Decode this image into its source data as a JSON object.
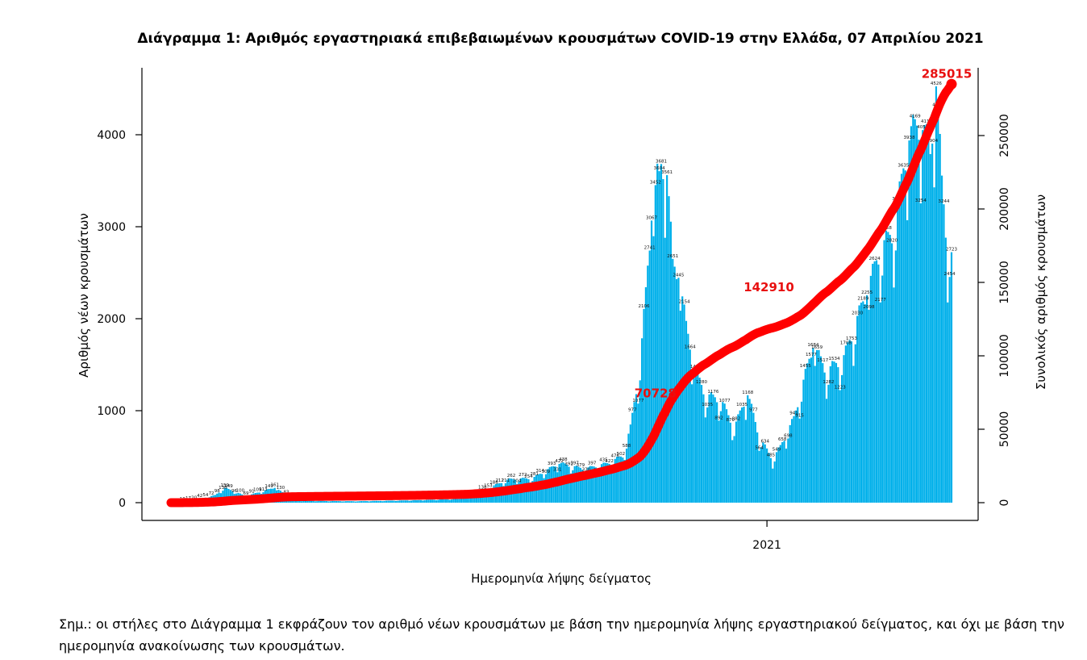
{
  "chart_data": {
    "type": "bar",
    "title": "Διάγραμμα 1: Αριθμός εργαστηριακά επιβεβαιωμένων κρουσμάτων COVID-19 στην Ελλάδα, 07 Απριλίου 2021",
    "xlabel": "Ημερομηνία λήψης δείγματος",
    "ylabel": "Αριθμός νέων κρουσμάτων",
    "y2label": "Συνολικός αριθμός κρουσμάτων",
    "ylim": [
      0,
      4700
    ],
    "y2lim": [
      0,
      285015
    ],
    "yticks": [
      0,
      1000,
      2000,
      3000,
      4000
    ],
    "y2ticks": [
      0,
      50000,
      100000,
      150000,
      200000,
      250000
    ],
    "x_tick_label": "2021",
    "bar_color": "#00b0ea",
    "line_color": "#ff0000",
    "series": [
      {
        "kind": "bar",
        "period": "daily, 2020-02-26 to 2021-04-07",
        "anchor_values": [
          {
            "date": "2020-03-25",
            "value": 159
          },
          {
            "date": "2020-04-20",
            "value": 161
          },
          {
            "date": "2020-09-15",
            "value": 422
          },
          {
            "date": "2020-11-02",
            "value": 3067
          },
          {
            "date": "2020-11-06",
            "value": 3604
          },
          {
            "date": "2020-11-10",
            "value": 3561
          },
          {
            "date": "2020-11-16",
            "value": 2445
          },
          {
            "date": "2020-12-22",
            "value": 1168
          },
          {
            "date": "2021-01-25",
            "value": 1684
          },
          {
            "date": "2021-02-22",
            "value": 2255
          },
          {
            "date": "2021-03-16",
            "value": 3938
          },
          {
            "date": "2021-03-23",
            "value": 4051
          },
          {
            "date": "2021-03-30",
            "value": 4526
          },
          {
            "date": "2021-04-07",
            "value": 2723
          }
        ]
      },
      {
        "kind": "line",
        "cumulative_labels": [
          {
            "date": "2020-11-04",
            "value": 70728,
            "label": "70728"
          },
          {
            "date": "2021-01-02",
            "value": 142910,
            "label": "142910"
          },
          {
            "date": "2021-04-07",
            "value": 285015,
            "label": "285015"
          }
        ]
      }
    ]
  },
  "note": "Σημ.: οι στήλες στο Διάγραμμα 1 εκφράζουν τον αριθμό νέων κρουσμάτων με βάση την ημερομηνία λήψης εργαστηριακού δείγματος, και όχι με βάση την ημερομηνία ανακοίνωσης των κρουσμάτων."
}
